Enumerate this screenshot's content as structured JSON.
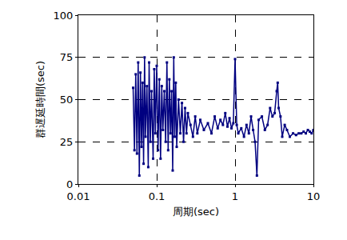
{
  "chart_data": {
    "type": "line",
    "x_label": "周期(sec)",
    "y_label": "群遅延時間(sec)",
    "x": [
      0.05,
      0.052,
      0.054,
      0.056,
      0.058,
      0.06,
      0.062,
      0.064,
      0.066,
      0.068,
      0.07,
      0.072,
      0.075,
      0.078,
      0.08,
      0.083,
      0.086,
      0.09,
      0.093,
      0.096,
      0.1,
      0.104,
      0.108,
      0.112,
      0.116,
      0.12,
      0.125,
      0.13,
      0.135,
      0.14,
      0.145,
      0.15,
      0.155,
      0.16,
      0.165,
      0.17,
      0.175,
      0.18,
      0.19,
      0.2,
      0.21,
      0.22,
      0.23,
      0.24,
      0.25,
      0.27,
      0.29,
      0.31,
      0.33,
      0.36,
      0.4,
      0.45,
      0.5,
      0.55,
      0.6,
      0.65,
      0.7,
      0.75,
      0.8,
      0.85,
      0.9,
      0.95,
      1.0,
      1.05,
      1.1,
      1.2,
      1.3,
      1.4,
      1.5,
      1.6,
      1.7,
      1.8,
      1.9,
      2.0,
      2.2,
      2.4,
      2.6,
      2.8,
      3.0,
      3.2,
      3.4,
      3.5,
      3.6,
      3.8,
      4.0,
      4.3,
      4.6,
      5.0,
      5.5,
      6,
      6.5,
      7,
      7.5,
      8,
      8.5,
      9,
      9.5,
      10
    ],
    "values": [
      57,
      20,
      65,
      18,
      72,
      5,
      66,
      22,
      60,
      12,
      75,
      28,
      58,
      10,
      72,
      25,
      55,
      15,
      68,
      30,
      70,
      20,
      62,
      15,
      58,
      32,
      55,
      25,
      72,
      20,
      62,
      30,
      55,
      8,
      75,
      28,
      60,
      22,
      50,
      30,
      48,
      25,
      45,
      30,
      42,
      35,
      28,
      40,
      30,
      38,
      32,
      36,
      30,
      40,
      33,
      38,
      35,
      42,
      34,
      39,
      33,
      36,
      74,
      35,
      30,
      33,
      28,
      35,
      30,
      40,
      32,
      25,
      5,
      38,
      40,
      32,
      35,
      45,
      40,
      42,
      55,
      60,
      45,
      40,
      28,
      35,
      32,
      28,
      30,
      29,
      30,
      30,
      31,
      30,
      32,
      31,
      30,
      32
    ],
    "color": "#000080",
    "marker": "square",
    "line_style": "solid",
    "log": "x",
    "xlim": [
      0.01,
      10
    ],
    "xticks": [
      0.01,
      0.1,
      1,
      10
    ],
    "ylim": [
      0,
      100
    ],
    "yticks": [
      0,
      25,
      50,
      75,
      100
    ],
    "grid": true
  }
}
